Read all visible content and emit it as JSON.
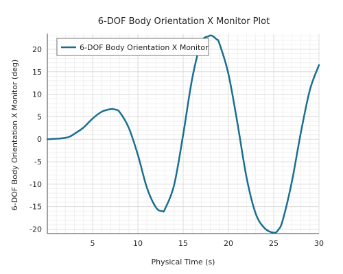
{
  "chart_data": {
    "type": "line",
    "title": "6-DOF Body Orientation X Monitor Plot",
    "xlabel": "Physical Time (s)",
    "ylabel": "6-DOF Body Orientation X Monitor (deg)",
    "xlim": [
      0,
      30
    ],
    "ylim": [
      -21,
      23.5
    ],
    "x_ticks": [
      5,
      10,
      15,
      20,
      25,
      30
    ],
    "y_ticks": [
      -20,
      -15,
      -10,
      -5,
      0,
      5,
      10,
      15,
      20
    ],
    "grid": true,
    "legend": {
      "position": "top-left",
      "entries": [
        "6-DOF Body Orientation X Monitor"
      ]
    },
    "series": [
      {
        "name": "6-DOF Body Orientation X Monitor",
        "color": "#1a6f8f",
        "x": [
          0,
          1,
          2,
          2.5,
          3,
          4,
          5,
          6,
          7,
          7.5,
          8,
          9,
          10,
          11,
          12,
          12.7,
          13,
          14,
          15,
          16,
          17,
          17.8,
          18.2,
          18.7,
          19,
          20,
          21,
          22,
          23,
          24,
          25,
          25.5,
          26,
          27,
          28,
          29,
          30
        ],
        "y": [
          0,
          0.1,
          0.3,
          0.6,
          1.2,
          2.6,
          4.6,
          6.1,
          6.7,
          6.6,
          6.0,
          2.5,
          -3.5,
          -10.8,
          -15.2,
          -16.0,
          -15.5,
          -10.2,
          1.0,
          13.5,
          21.5,
          22.9,
          23.0,
          22.2,
          21.3,
          14.5,
          3.5,
          -8.5,
          -16.5,
          -19.8,
          -20.8,
          -20.2,
          -18.0,
          -9.5,
          1.5,
          11.0,
          16.5
        ]
      }
    ]
  }
}
